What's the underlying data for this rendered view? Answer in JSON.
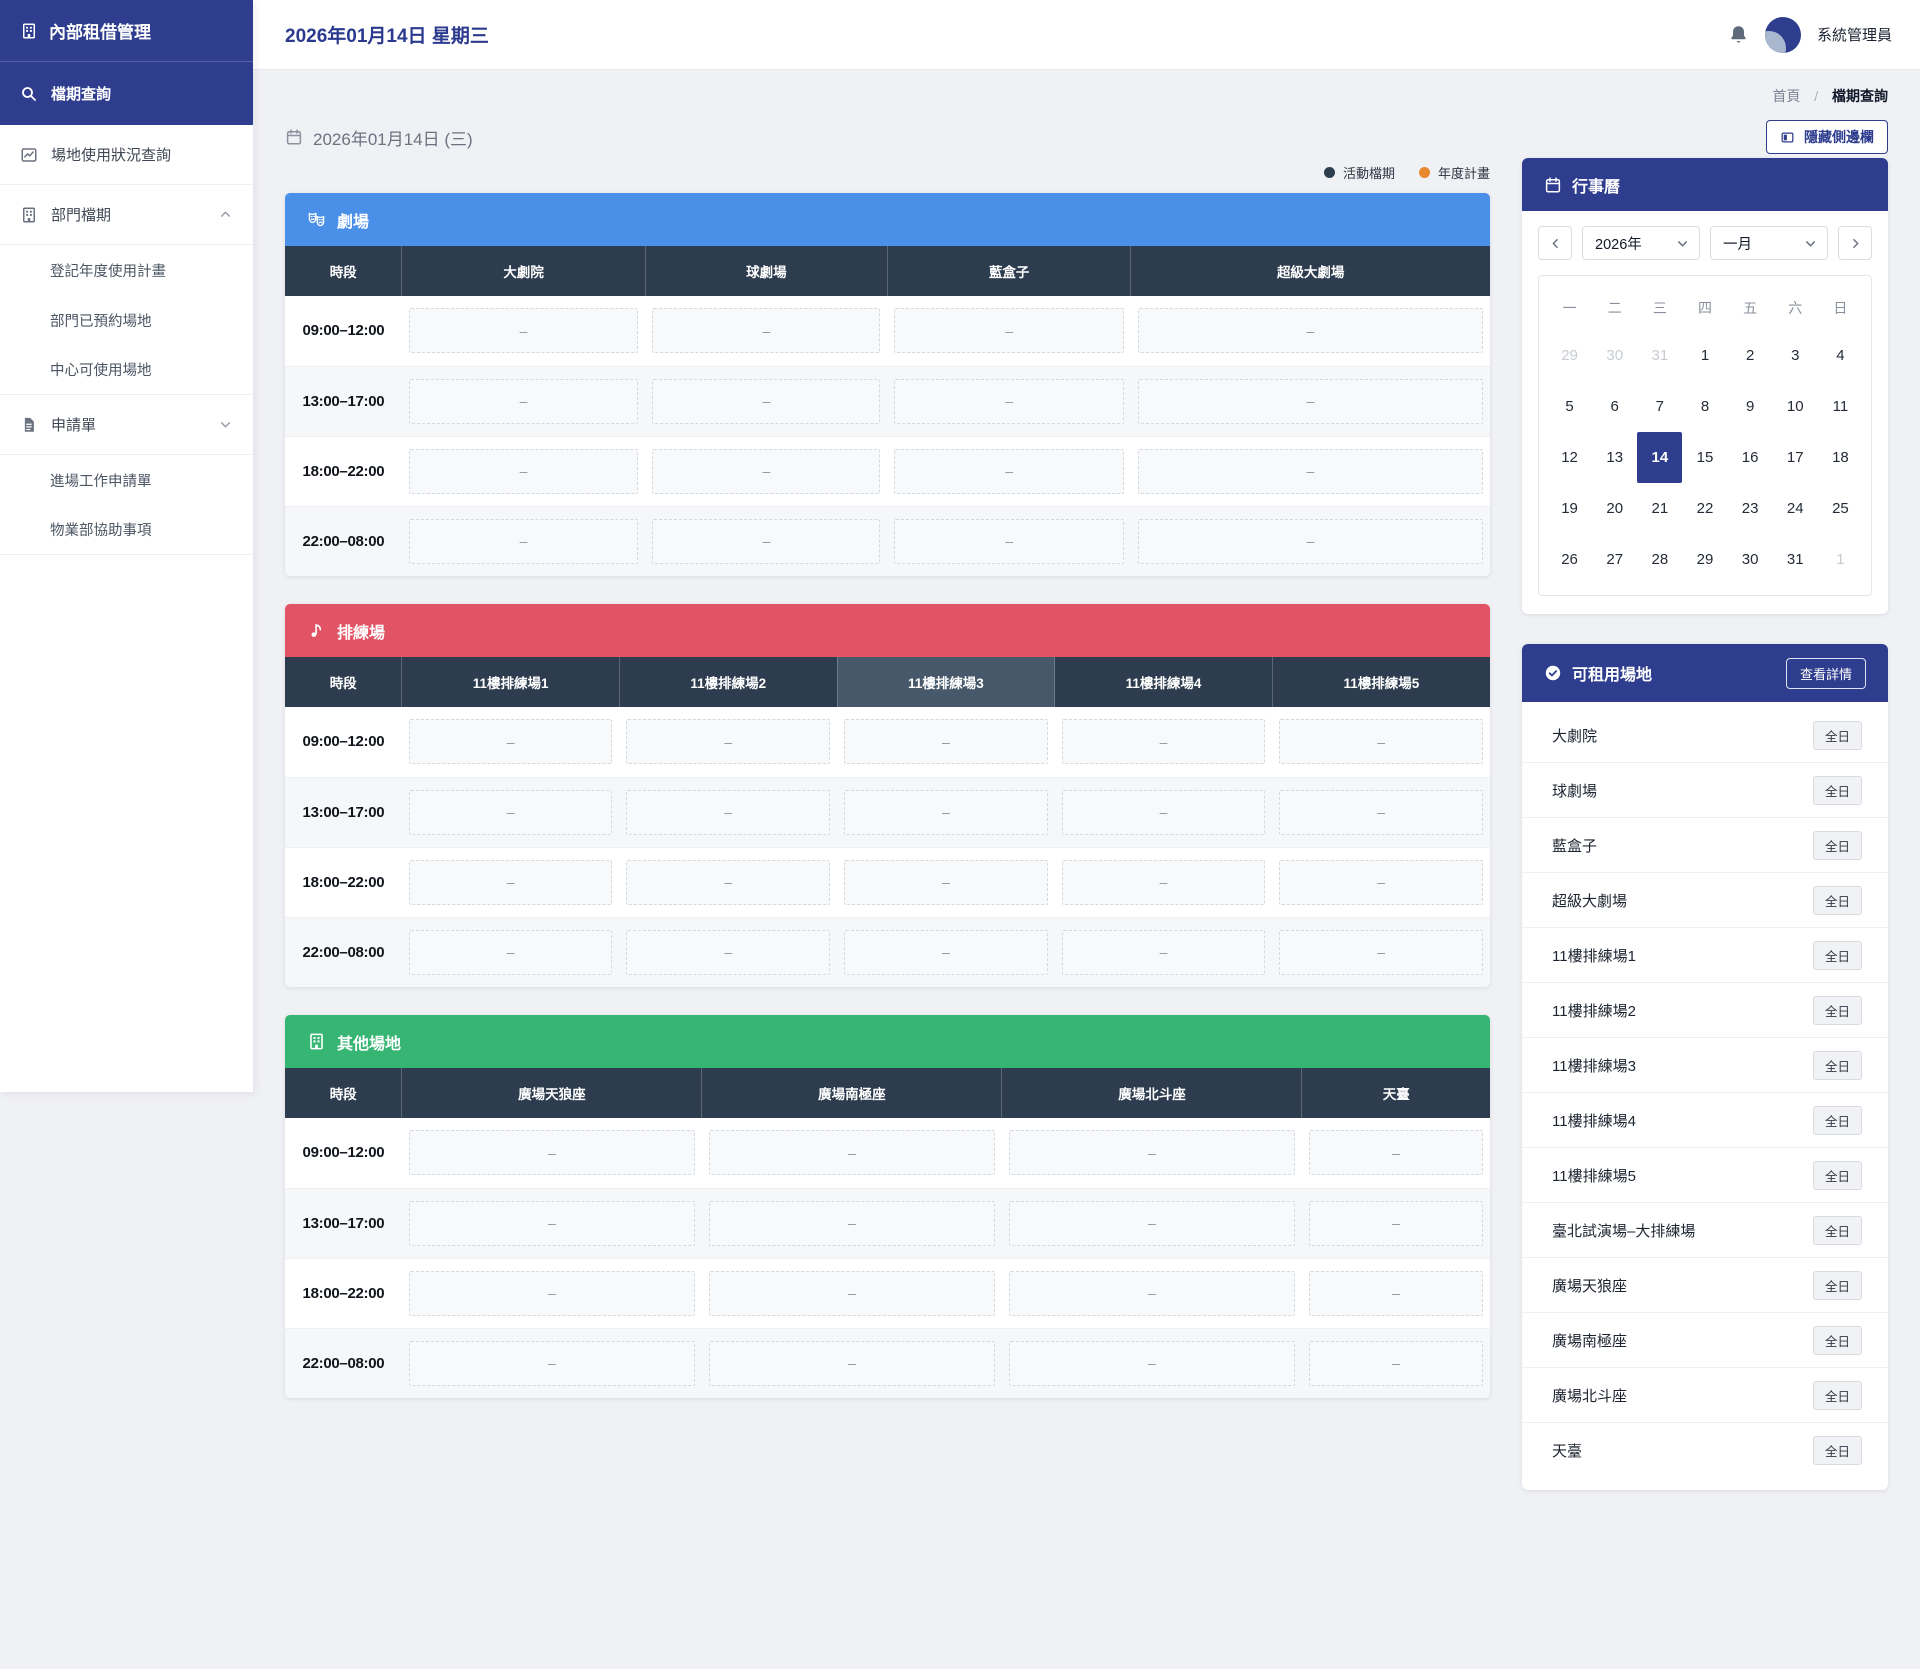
{
  "app_title": "內部租借管理",
  "topbar": {
    "date_title": "2026年01月14日 星期三",
    "user_name": "系統管理員"
  },
  "breadcrumb": {
    "home": "首頁",
    "separator": "/",
    "current": "檔期查詢"
  },
  "content_top": {
    "date_label": "2026年01月14日 (三)",
    "hide_sidebar_label": "隱藏側邊欄"
  },
  "legend": [
    {
      "key": "event-schedule",
      "label": "活動檔期",
      "color": "#2c3e50"
    },
    {
      "key": "annual-plan",
      "label": "年度計畫",
      "color": "#e8882f"
    }
  ],
  "sidebar_items": [
    {
      "key": "schedule-search",
      "label": "檔期查詢",
      "icon": "search-icon",
      "active": true
    },
    {
      "key": "venue-usage-status",
      "label": "場地使用狀況查詢",
      "icon": "chart-icon"
    },
    {
      "key": "department-schedule",
      "label": "部門檔期",
      "icon": "building-icon",
      "chevron": "up"
    },
    {
      "key": "register-annual-plan",
      "label": "登記年度使用計畫",
      "sub": true
    },
    {
      "key": "department-reserved-venues",
      "label": "部門已預約場地",
      "sub": true
    },
    {
      "key": "center-available-venues",
      "label": "中心可使用場地",
      "sub": true,
      "group_end": true
    },
    {
      "key": "application-forms",
      "label": "申請單",
      "icon": "document-icon",
      "chevron": "down"
    },
    {
      "key": "entry-work-application",
      "label": "進場工作申請單",
      "sub": true
    },
    {
      "key": "property-assistance",
      "label": "物業部協助事項",
      "sub": true,
      "group_end": true
    }
  ],
  "schedule_tables": [
    {
      "key": "theater",
      "title": "劇場",
      "icon": "theater-masks-icon",
      "header_color": "#4a90e8",
      "columns": [
        "時段",
        "大劇院",
        "球劇場",
        "藍盒子",
        "超級大劇場"
      ],
      "time_slots": [
        "09:00–12:00",
        "13:00–17:00",
        "18:00–22:00",
        "22:00–08:00"
      ],
      "empty_value": "–"
    },
    {
      "key": "rehearsal",
      "title": "排練場",
      "icon": "music-note-icon",
      "header_color": "#e25465",
      "columns": [
        "時段",
        "11樓排練場1",
        "11樓排練場2",
        "11樓排練場3",
        "11樓排練場4",
        "11樓排練場5"
      ],
      "highlight_column": 3,
      "time_slots": [
        "09:00–12:00",
        "13:00–17:00",
        "18:00–22:00",
        "22:00–08:00"
      ],
      "empty_value": "–"
    },
    {
      "key": "other-venues",
      "title": "其他場地",
      "icon": "building-icon",
      "header_color": "#36b573",
      "columns": [
        "時段",
        "廣場天狼座",
        "廣場南極座",
        "廣場北斗座",
        "天臺"
      ],
      "time_slots": [
        "09:00–12:00",
        "13:00–17:00",
        "18:00–22:00",
        "22:00–08:00"
      ],
      "empty_value": "–"
    }
  ],
  "calendar": {
    "title": "行事曆",
    "year_value": "2026年",
    "month_value": "一月",
    "weekdays": [
      "一",
      "二",
      "三",
      "四",
      "五",
      "六",
      "日"
    ],
    "days": [
      {
        "d": "29",
        "muted": true
      },
      {
        "d": "30",
        "muted": true
      },
      {
        "d": "31",
        "muted": true
      },
      {
        "d": "1"
      },
      {
        "d": "2"
      },
      {
        "d": "3"
      },
      {
        "d": "4"
      },
      {
        "d": "5"
      },
      {
        "d": "6"
      },
      {
        "d": "7"
      },
      {
        "d": "8"
      },
      {
        "d": "9"
      },
      {
        "d": "10"
      },
      {
        "d": "11"
      },
      {
        "d": "12"
      },
      {
        "d": "13"
      },
      {
        "d": "14",
        "selected": true
      },
      {
        "d": "15"
      },
      {
        "d": "16"
      },
      {
        "d": "17"
      },
      {
        "d": "18"
      },
      {
        "d": "19"
      },
      {
        "d": "20"
      },
      {
        "d": "21"
      },
      {
        "d": "22"
      },
      {
        "d": "23"
      },
      {
        "d": "24"
      },
      {
        "d": "25"
      },
      {
        "d": "26"
      },
      {
        "d": "27"
      },
      {
        "d": "28"
      },
      {
        "d": "29"
      },
      {
        "d": "30"
      },
      {
        "d": "31"
      },
      {
        "d": "1",
        "muted": true
      }
    ]
  },
  "available_venues": {
    "title": "可租用場地",
    "details_button": "查看詳情",
    "badge": "全日",
    "items": [
      "大劇院",
      "球劇場",
      "藍盒子",
      "超級大劇場",
      "11樓排練場1",
      "11樓排練場2",
      "11樓排練場3",
      "11樓排練場4",
      "11樓排練場5",
      "臺北試演場–大排練場",
      "廣場天狼座",
      "廣場南極座",
      "廣場北斗座",
      "天臺"
    ]
  }
}
